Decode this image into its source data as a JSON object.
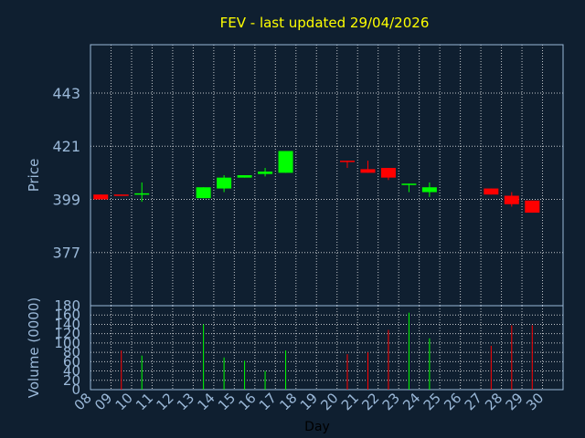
{
  "chart_data": [
    {
      "type": "candlestick",
      "title": "FEV - last updated 29/04/2026",
      "ylabel": "Price",
      "ylim": [
        355,
        463
      ],
      "yticks": [
        "377",
        "399",
        "421",
        "443"
      ],
      "grid": true,
      "up_color": "#00ff00",
      "down_color": "#ff0000",
      "candles": [
        {
          "day": "08",
          "open": 401,
          "close": 399,
          "high": 401,
          "low": 399
        },
        {
          "day": "09",
          "open": 401,
          "close": 400.5,
          "high": 401,
          "low": 400.5
        },
        {
          "day": "10",
          "open": 401,
          "close": 401.5,
          "high": 406,
          "low": 398
        },
        {
          "day": "13",
          "open": 399.5,
          "close": 404,
          "high": 404,
          "low": 399.5
        },
        {
          "day": "14",
          "open": 403.5,
          "close": 408,
          "high": 409,
          "low": 402
        },
        {
          "day": "15",
          "open": 408,
          "close": 409,
          "high": 409,
          "low": 408
        },
        {
          "day": "16",
          "open": 409.5,
          "close": 410.5,
          "high": 412,
          "low": 408.5
        },
        {
          "day": "17",
          "open": 410,
          "close": 419,
          "high": 419,
          "low": 410
        },
        {
          "day": "20",
          "open": 415,
          "close": 414.5,
          "high": 415,
          "low": 412
        },
        {
          "day": "21",
          "open": 411.5,
          "close": 410,
          "high": 415,
          "low": 410
        },
        {
          "day": "22",
          "open": 412,
          "close": 408,
          "high": 412,
          "low": 407
        },
        {
          "day": "23",
          "open": 405,
          "close": 405.5,
          "high": 405.5,
          "low": 402
        },
        {
          "day": "24",
          "open": 402,
          "close": 404,
          "high": 406,
          "low": 400
        },
        {
          "day": "27",
          "open": 403.5,
          "close": 401,
          "high": 403.5,
          "low": 401
        },
        {
          "day": "28",
          "open": 400.5,
          "close": 397,
          "high": 402,
          "low": 396
        },
        {
          "day": "29",
          "open": 398.5,
          "close": 393.5,
          "high": 398.5,
          "low": 393.5
        }
      ]
    },
    {
      "type": "bar",
      "xlabel": "Day",
      "ylabel": "Volume (0000)",
      "ylim": [
        0,
        180
      ],
      "yticks": [
        "0",
        "20",
        "40",
        "60",
        "80",
        "100",
        "120",
        "140",
        "160",
        "180"
      ],
      "grid": true,
      "categories": [
        "08",
        "09",
        "10",
        "11",
        "12",
        "13",
        "14",
        "15",
        "16",
        "17",
        "18",
        "19",
        "20",
        "21",
        "22",
        "23",
        "24",
        "25",
        "26",
        "27",
        "28",
        "29",
        "30"
      ],
      "bars": [
        {
          "day": "09",
          "value": 84,
          "color": "#ff0000"
        },
        {
          "day": "10",
          "value": 73,
          "color": "#00ff00"
        },
        {
          "day": "13",
          "value": 140,
          "color": "#00ff00"
        },
        {
          "day": "14",
          "value": 69,
          "color": "#00ff00"
        },
        {
          "day": "15",
          "value": 62,
          "color": "#00ff00"
        },
        {
          "day": "16",
          "value": 40,
          "color": "#00ff00"
        },
        {
          "day": "17",
          "value": 84,
          "color": "#00ff00"
        },
        {
          "day": "20",
          "value": 76,
          "color": "#ff0000"
        },
        {
          "day": "21",
          "value": 80,
          "color": "#ff0000"
        },
        {
          "day": "22",
          "value": 128,
          "color": "#ff0000"
        },
        {
          "day": "23",
          "value": 165,
          "color": "#00ff00"
        },
        {
          "day": "24",
          "value": 110,
          "color": "#00ff00"
        },
        {
          "day": "27",
          "value": 94,
          "color": "#ff0000"
        },
        {
          "day": "28",
          "value": 138,
          "color": "#ff0000"
        },
        {
          "day": "29",
          "value": 138,
          "color": "#ff0000"
        }
      ]
    }
  ]
}
